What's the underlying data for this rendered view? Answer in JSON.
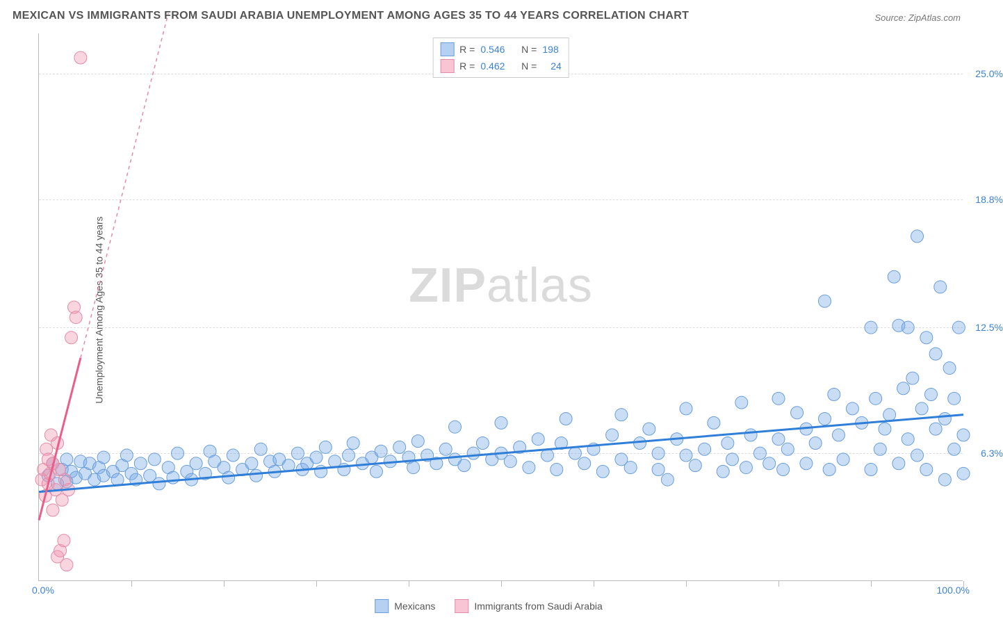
{
  "title": "MEXICAN VS IMMIGRANTS FROM SAUDI ARABIA UNEMPLOYMENT AMONG AGES 35 TO 44 YEARS CORRELATION CHART",
  "source": "Source: ZipAtlas.com",
  "ylabel": "Unemployment Among Ages 35 to 44 years",
  "watermark_a": "ZIP",
  "watermark_b": "atlas",
  "chart": {
    "type": "scatter",
    "xlim": [
      0,
      100
    ],
    "ylim": [
      0,
      27
    ],
    "xticks": [
      0,
      10,
      20,
      30,
      40,
      50,
      60,
      70,
      80,
      90,
      100
    ],
    "yticks": [
      6.3,
      12.5,
      18.8,
      25.0
    ],
    "ytick_labels": [
      "6.3%",
      "12.5%",
      "18.8%",
      "25.0%"
    ],
    "xtick_min_label": "0.0%",
    "xtick_max_label": "100.0%",
    "marker_radius": 9,
    "line_width_solid": 3,
    "background_color": "#ffffff",
    "grid_color": "#dddddd",
    "series": {
      "blue": {
        "label": "Mexicans",
        "R": "0.546",
        "N": "198",
        "fill": "rgba(120,170,230,0.40)",
        "stroke": "#6a9edc",
        "line_solid": "#2f7ed8",
        "trend": {
          "x1": 0,
          "y1": 4.4,
          "x2": 100,
          "y2": 8.2
        },
        "points": [
          [
            1,
            5.2
          ],
          [
            1.5,
            5.8
          ],
          [
            2,
            4.8
          ],
          [
            2.5,
            5.5
          ],
          [
            3,
            6.0
          ],
          [
            3,
            4.9
          ],
          [
            3.5,
            5.4
          ],
          [
            4,
            5.1
          ],
          [
            4.5,
            5.9
          ],
          [
            5,
            5.3
          ],
          [
            5.5,
            5.8
          ],
          [
            6,
            5.0
          ],
          [
            6.5,
            5.6
          ],
          [
            7,
            6.1
          ],
          [
            7,
            5.2
          ],
          [
            8,
            5.4
          ],
          [
            8.5,
            5.0
          ],
          [
            9,
            5.7
          ],
          [
            9.5,
            6.2
          ],
          [
            10,
            5.3
          ],
          [
            10.5,
            5.0
          ],
          [
            11,
            5.8
          ],
          [
            12,
            5.2
          ],
          [
            12.5,
            6.0
          ],
          [
            13,
            4.8
          ],
          [
            14,
            5.6
          ],
          [
            14.5,
            5.1
          ],
          [
            15,
            6.3
          ],
          [
            16,
            5.4
          ],
          [
            16.5,
            5.0
          ],
          [
            17,
            5.8
          ],
          [
            18,
            5.3
          ],
          [
            18.5,
            6.4
          ],
          [
            19,
            5.9
          ],
          [
            20,
            5.6
          ],
          [
            20.5,
            5.1
          ],
          [
            21,
            6.2
          ],
          [
            22,
            5.5
          ],
          [
            23,
            5.8
          ],
          [
            23.5,
            5.2
          ],
          [
            24,
            6.5
          ],
          [
            25,
            5.9
          ],
          [
            25.5,
            5.4
          ],
          [
            26,
            6.0
          ],
          [
            27,
            5.7
          ],
          [
            28,
            6.3
          ],
          [
            28.5,
            5.5
          ],
          [
            29,
            5.8
          ],
          [
            30,
            6.1
          ],
          [
            30.5,
            5.4
          ],
          [
            31,
            6.6
          ],
          [
            32,
            5.9
          ],
          [
            33,
            5.5
          ],
          [
            33.5,
            6.2
          ],
          [
            34,
            6.8
          ],
          [
            35,
            5.8
          ],
          [
            36,
            6.1
          ],
          [
            36.5,
            5.4
          ],
          [
            37,
            6.4
          ],
          [
            38,
            5.9
          ],
          [
            39,
            6.6
          ],
          [
            40,
            6.1
          ],
          [
            40.5,
            5.6
          ],
          [
            41,
            6.9
          ],
          [
            42,
            6.2
          ],
          [
            43,
            5.8
          ],
          [
            44,
            6.5
          ],
          [
            45,
            7.6
          ],
          [
            45,
            6.0
          ],
          [
            46,
            5.7
          ],
          [
            47,
            6.3
          ],
          [
            48,
            6.8
          ],
          [
            49,
            6.0
          ],
          [
            50,
            7.8
          ],
          [
            50,
            6.3
          ],
          [
            51,
            5.9
          ],
          [
            52,
            6.6
          ],
          [
            53,
            5.6
          ],
          [
            54,
            7.0
          ],
          [
            55,
            6.2
          ],
          [
            56,
            5.5
          ],
          [
            56.5,
            6.8
          ],
          [
            57,
            8.0
          ],
          [
            58,
            6.3
          ],
          [
            59,
            5.8
          ],
          [
            60,
            6.5
          ],
          [
            61,
            5.4
          ],
          [
            62,
            7.2
          ],
          [
            63,
            8.2
          ],
          [
            63,
            6.0
          ],
          [
            64,
            5.6
          ],
          [
            65,
            6.8
          ],
          [
            66,
            7.5
          ],
          [
            67,
            6.3
          ],
          [
            67,
            5.5
          ],
          [
            68,
            5.0
          ],
          [
            69,
            7.0
          ],
          [
            70,
            8.5
          ],
          [
            70,
            6.2
          ],
          [
            71,
            5.7
          ],
          [
            72,
            6.5
          ],
          [
            73,
            7.8
          ],
          [
            74,
            5.4
          ],
          [
            74.5,
            6.8
          ],
          [
            75,
            6.0
          ],
          [
            76,
            8.8
          ],
          [
            76.5,
            5.6
          ],
          [
            77,
            7.2
          ],
          [
            78,
            6.3
          ],
          [
            79,
            5.8
          ],
          [
            80,
            9.0
          ],
          [
            80,
            7.0
          ],
          [
            80.5,
            5.5
          ],
          [
            81,
            6.5
          ],
          [
            82,
            8.3
          ],
          [
            83,
            7.5
          ],
          [
            83,
            5.8
          ],
          [
            84,
            6.8
          ],
          [
            85,
            13.8
          ],
          [
            85,
            8.0
          ],
          [
            85.5,
            5.5
          ],
          [
            86,
            9.2
          ],
          [
            86.5,
            7.2
          ],
          [
            87,
            6.0
          ],
          [
            88,
            8.5
          ],
          [
            89,
            7.8
          ],
          [
            90,
            12.5
          ],
          [
            90,
            5.5
          ],
          [
            90.5,
            9.0
          ],
          [
            91,
            6.5
          ],
          [
            91.5,
            7.5
          ],
          [
            92,
            8.2
          ],
          [
            92.5,
            15.0
          ],
          [
            93,
            5.8
          ],
          [
            93,
            12.6
          ],
          [
            93.5,
            9.5
          ],
          [
            94,
            7.0
          ],
          [
            94,
            12.5
          ],
          [
            94.5,
            10.0
          ],
          [
            95,
            6.2
          ],
          [
            95,
            17.0
          ],
          [
            95.5,
            8.5
          ],
          [
            96,
            12.0
          ],
          [
            96,
            5.5
          ],
          [
            96.5,
            9.2
          ],
          [
            97,
            7.5
          ],
          [
            97,
            11.2
          ],
          [
            97.5,
            14.5
          ],
          [
            98,
            8.0
          ],
          [
            98,
            5.0
          ],
          [
            98.5,
            10.5
          ],
          [
            99,
            6.5
          ],
          [
            99,
            9.0
          ],
          [
            99.5,
            12.5
          ],
          [
            100,
            7.2
          ],
          [
            100,
            5.3
          ]
        ]
      },
      "pink": {
        "label": "Immigrants from Saudi Arabia",
        "R": "0.462",
        "N": "24",
        "fill": "rgba(240,150,175,0.40)",
        "stroke": "#e68aa8",
        "line_solid": "#ec5e8a",
        "trend_solid": {
          "x1": 0,
          "y1": 3.0,
          "x2": 4.5,
          "y2": 11.0
        },
        "trend_dash": {
          "x1": 4.5,
          "y1": 11.0,
          "x2": 14,
          "y2": 28.0
        },
        "points": [
          [
            0.3,
            5.0
          ],
          [
            0.5,
            5.5
          ],
          [
            0.7,
            4.2
          ],
          [
            0.8,
            6.5
          ],
          [
            1.0,
            4.8
          ],
          [
            1.0,
            6.0
          ],
          [
            1.2,
            5.3
          ],
          [
            1.3,
            7.2
          ],
          [
            1.5,
            3.5
          ],
          [
            1.5,
            5.8
          ],
          [
            1.8,
            4.5
          ],
          [
            2.0,
            6.8
          ],
          [
            2.0,
            1.2
          ],
          [
            2.2,
            5.5
          ],
          [
            2.3,
            1.5
          ],
          [
            2.5,
            4.0
          ],
          [
            2.7,
            2.0
          ],
          [
            2.8,
            5.0
          ],
          [
            3.0,
            0.8
          ],
          [
            3.2,
            4.5
          ],
          [
            3.5,
            12.0
          ],
          [
            3.8,
            13.5
          ],
          [
            4.0,
            13.0
          ],
          [
            4.5,
            25.8
          ]
        ]
      }
    }
  },
  "stat_legend_labels": {
    "R": "R =",
    "N": "N ="
  },
  "bottom_legend_order": [
    "blue",
    "pink"
  ]
}
